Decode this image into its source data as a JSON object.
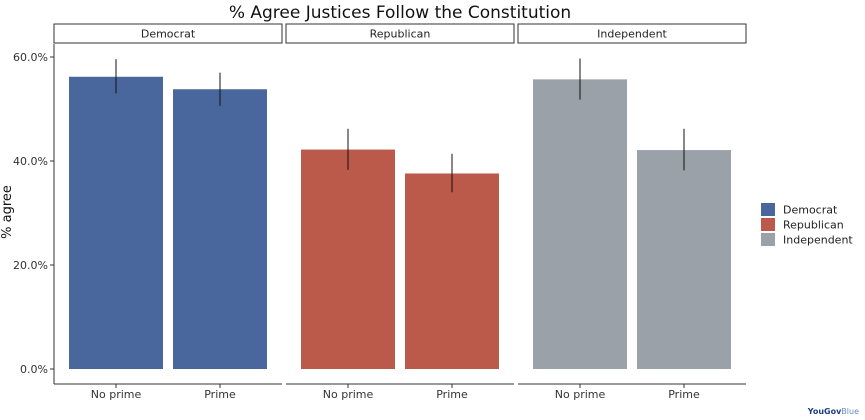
{
  "chart_data": {
    "type": "bar",
    "title": "% Agree Justices Follow the Constitution",
    "ylabel": "% agree",
    "xlabel": "",
    "ylim": [
      0,
      0.6
    ],
    "y_ticks": [
      "0.0%",
      "20.0%",
      "40.0%",
      "60.0%"
    ],
    "y_tick_values": [
      0,
      0.2,
      0.4,
      0.6
    ],
    "categories": [
      "No prime",
      "Prime"
    ],
    "panels": [
      {
        "name": "Democrat",
        "color": "#4a679d",
        "values": [
          0.562,
          0.538
        ],
        "lower": [
          0.53,
          0.506
        ],
        "upper": [
          0.596,
          0.57
        ]
      },
      {
        "name": "Republican",
        "color": "#bb5a4a",
        "values": [
          0.422,
          0.376
        ],
        "lower": [
          0.383,
          0.34
        ],
        "upper": [
          0.462,
          0.414
        ]
      },
      {
        "name": "Independent",
        "color": "#9ba1a8",
        "values": [
          0.557,
          0.421
        ],
        "lower": [
          0.518,
          0.382
        ],
        "upper": [
          0.597,
          0.462
        ]
      }
    ],
    "legend": {
      "position": "right",
      "entries": [
        "Democrat",
        "Republican",
        "Independent"
      ]
    },
    "grid": false
  },
  "brand": {
    "part1": "YouGov",
    "part2": "Blue"
  }
}
